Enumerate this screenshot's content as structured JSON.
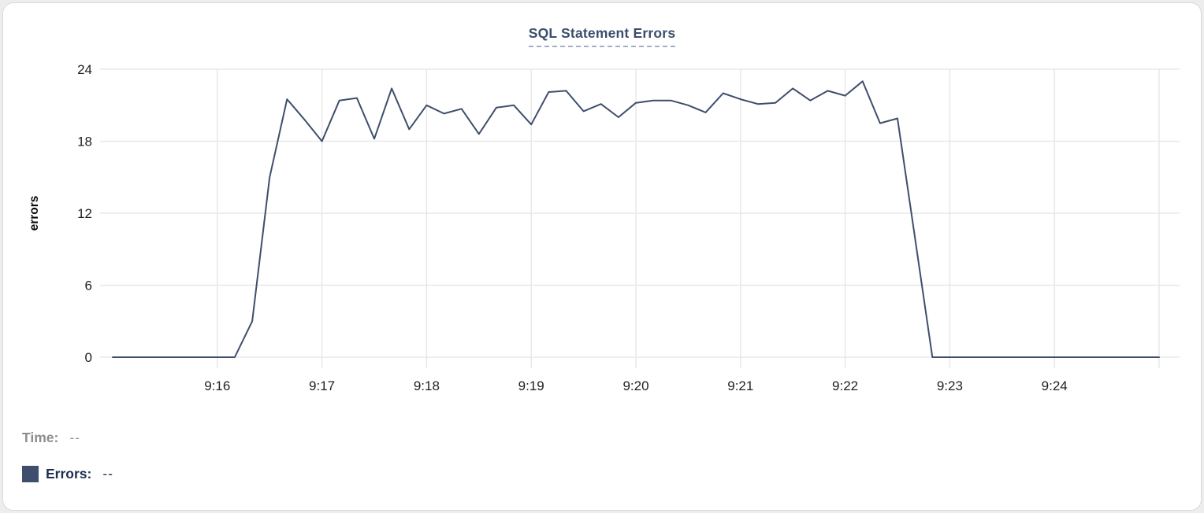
{
  "header": {
    "title": "SQL Statement Errors"
  },
  "legend": {
    "time_label": "Time:",
    "time_value": "--",
    "errors_label": "Errors:",
    "errors_value": "--",
    "swatch_color": "#3e4e6c"
  },
  "colors": {
    "line": "#3e4e6c",
    "title": "#3b4e6e",
    "title_underline": "#a4aec6",
    "grid": "#e8e8e8",
    "tick_text": "#1f1f1f",
    "card_border": "#d9d9d9"
  },
  "chart_data": {
    "type": "line",
    "title": "SQL Statement Errors",
    "xlabel": "",
    "ylabel": "errors",
    "ylim": [
      0,
      24
    ],
    "y_ticks": [
      0,
      6,
      12,
      18,
      24
    ],
    "x_tick_labels": [
      "9:16",
      "9:17",
      "9:18",
      "9:19",
      "9:20",
      "9:21",
      "9:22",
      "9:23",
      "9:24"
    ],
    "x_range": [
      "9:15:00",
      "9:25:00"
    ],
    "sample_interval_seconds": 10,
    "grid": true,
    "legend_position": "bottom-left",
    "series": [
      {
        "name": "Errors",
        "color": "#3e4e6c",
        "x_times": [
          "9:15:00",
          "9:15:10",
          "9:15:20",
          "9:15:30",
          "9:15:40",
          "9:15:50",
          "9:16:00",
          "9:16:10",
          "9:16:20",
          "9:16:30",
          "9:16:40",
          "9:16:50",
          "9:17:00",
          "9:17:10",
          "9:17:20",
          "9:17:30",
          "9:17:40",
          "9:17:50",
          "9:18:00",
          "9:18:10",
          "9:18:20",
          "9:18:30",
          "9:18:40",
          "9:18:50",
          "9:19:00",
          "9:19:10",
          "9:19:20",
          "9:19:30",
          "9:19:40",
          "9:19:50",
          "9:20:00",
          "9:20:10",
          "9:20:20",
          "9:20:30",
          "9:20:40",
          "9:20:50",
          "9:21:00",
          "9:21:10",
          "9:21:20",
          "9:21:30",
          "9:21:40",
          "9:21:50",
          "9:22:00",
          "9:22:10",
          "9:22:20",
          "9:22:30",
          "9:22:40",
          "9:22:50",
          "9:23:00",
          "9:23:10",
          "9:23:20",
          "9:23:30",
          "9:23:40",
          "9:23:50",
          "9:24:00",
          "9:24:10",
          "9:24:20",
          "9:24:30",
          "9:24:40",
          "9:24:50",
          "9:25:00"
        ],
        "values": [
          0,
          0,
          0,
          0,
          0,
          0,
          0,
          0,
          3,
          15,
          21.5,
          19.8,
          18,
          21.4,
          21.6,
          18.2,
          22.4,
          19,
          21,
          20.3,
          20.7,
          18.6,
          20.8,
          21,
          19.4,
          22.1,
          22.2,
          20.5,
          21.1,
          20,
          21.2,
          21.4,
          21.4,
          21,
          20.4,
          22,
          21.5,
          21.1,
          21.2,
          22.4,
          21.4,
          22.2,
          21.8,
          23,
          19.5,
          19.9,
          10,
          0,
          0,
          0,
          0,
          0,
          0,
          0,
          0,
          0,
          0,
          0,
          0,
          0,
          0
        ]
      }
    ]
  }
}
